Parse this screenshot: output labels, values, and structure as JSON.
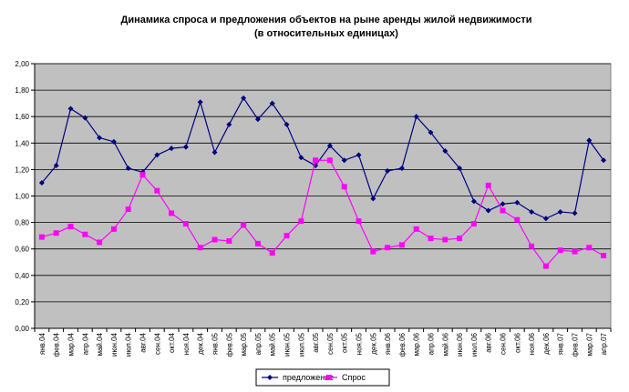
{
  "chart_data": {
    "type": "line",
    "title": "Динамика спроса и предложения объектов на рыне аренды жилой недвижимости",
    "subtitle": "(в относительных единицах)",
    "xlabel": "",
    "ylabel": "",
    "ylim": [
      0,
      2
    ],
    "y_ticks": [
      "0,00",
      "0,20",
      "0,40",
      "0,60",
      "0,80",
      "1,00",
      "1,20",
      "1,40",
      "1,60",
      "1,80",
      "2,00"
    ],
    "grid": true,
    "legend_position": "bottom",
    "plot_background": "#c0c0c0",
    "categories": [
      "янв.04",
      "фев.04",
      "мар.04",
      "апр.04",
      "май.04",
      "июн.04",
      "июл.04",
      "авг.04",
      "сен.04",
      "окт.04",
      "ноя.04",
      "дек.04",
      "янв.05",
      "фев.05",
      "мар.05",
      "апр.05",
      "май.05",
      "июн.05",
      "июл.05",
      "авг.05",
      "сен.05",
      "окт.05",
      "ноя.05",
      "дек.05",
      "янв.06",
      "фев.06",
      "мар.06",
      "апр.06",
      "май.06",
      "июн.06",
      "июл.06",
      "авг.06",
      "сен.06",
      "окт.06",
      "ноя.06",
      "дек.06",
      "янв.07",
      "фев.07",
      "мар.07",
      "апр.07"
    ],
    "series": [
      {
        "name": "предложение",
        "color": "#000080",
        "marker": "diamond",
        "values": [
          1.1,
          1.23,
          1.66,
          1.59,
          1.44,
          1.41,
          1.21,
          1.18,
          1.31,
          1.36,
          1.37,
          1.71,
          1.33,
          1.54,
          1.74,
          1.58,
          1.7,
          1.54,
          1.29,
          1.23,
          1.38,
          1.27,
          1.31,
          0.98,
          1.19,
          1.21,
          1.6,
          1.48,
          1.34,
          1.21,
          0.96,
          0.89,
          0.94,
          0.95,
          0.88,
          0.83,
          0.88,
          0.87,
          1.42,
          1.27
        ]
      },
      {
        "name": "Спрос",
        "color": "#ff00ff",
        "marker": "square",
        "values": [
          0.69,
          0.72,
          0.77,
          0.71,
          0.65,
          0.75,
          0.9,
          1.16,
          1.04,
          0.87,
          0.79,
          0.61,
          0.67,
          0.66,
          0.78,
          0.64,
          0.57,
          0.7,
          0.81,
          1.27,
          1.27,
          1.07,
          0.81,
          0.58,
          0.61,
          0.63,
          0.75,
          0.68,
          0.67,
          0.68,
          0.79,
          1.08,
          0.89,
          0.82,
          0.62,
          0.47,
          0.59,
          0.58,
          0.61,
          0.55
        ]
      }
    ]
  }
}
